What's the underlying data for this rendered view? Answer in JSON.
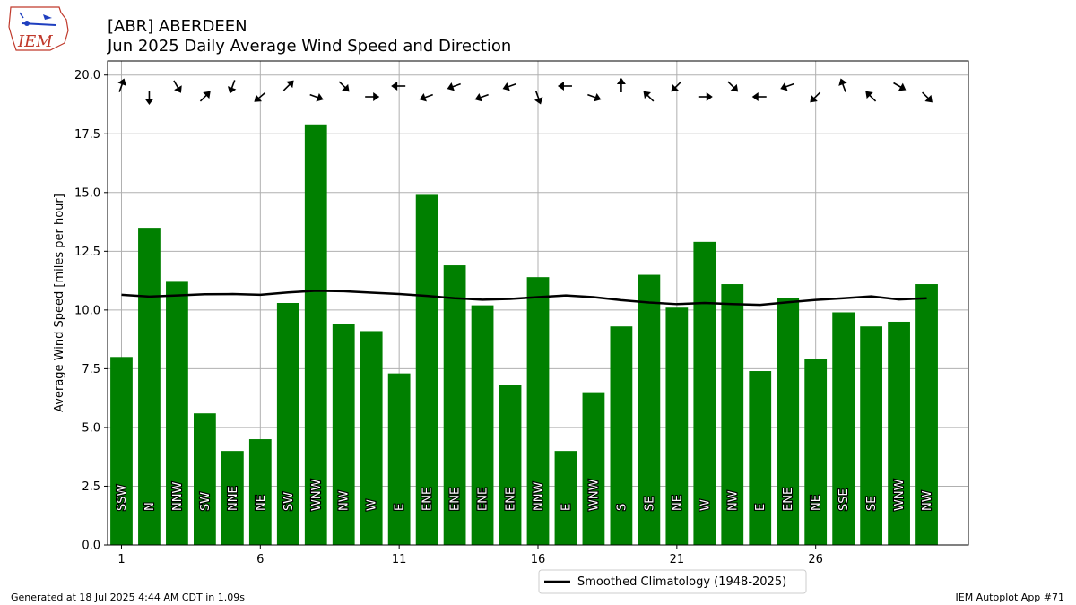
{
  "header": {
    "logo_text": "IEM",
    "title_line1": "[ABR] ABERDEEN",
    "title_line2": "Jun 2025 Daily Average Wind Speed and Direction"
  },
  "footer": {
    "generated": "Generated at 18 Jul 2025 4:44 AM CDT in 1.09s",
    "app": "IEM Autoplot App #71"
  },
  "chart_data": {
    "type": "bar",
    "title": "Jun 2025 Daily Average Wind Speed and Direction",
    "xlabel": "",
    "ylabel": "Average Wind Speed [miles per hour]",
    "xlim": [
      0.5,
      31.5
    ],
    "ylim": [
      0,
      20.6
    ],
    "x_ticks": [
      1,
      6,
      11,
      16,
      21,
      26
    ],
    "y_ticks": [
      0.0,
      2.5,
      5.0,
      7.5,
      10.0,
      12.5,
      15.0,
      17.5,
      20.0
    ],
    "grid": true,
    "bar_color": "#008000",
    "days": [
      1,
      2,
      3,
      4,
      5,
      6,
      7,
      8,
      9,
      10,
      11,
      12,
      13,
      14,
      15,
      16,
      17,
      18,
      19,
      20,
      21,
      22,
      23,
      24,
      25,
      26,
      27,
      28,
      29,
      30
    ],
    "values": [
      8.0,
      13.5,
      11.2,
      5.6,
      4.0,
      4.5,
      10.3,
      17.9,
      9.4,
      9.1,
      7.3,
      14.9,
      11.9,
      10.2,
      6.8,
      11.4,
      4.0,
      6.5,
      9.3,
      11.5,
      10.1,
      12.9,
      11.1,
      7.4,
      10.5,
      7.9,
      9.9,
      9.3,
      9.5,
      11.1
    ],
    "directions": [
      "SSW",
      "N",
      "NNW",
      "SW",
      "NNE",
      "NE",
      "SW",
      "WNW",
      "NW",
      "W",
      "E",
      "ENE",
      "ENE",
      "ENE",
      "ENE",
      "NNW",
      "E",
      "WNW",
      "S",
      "SE",
      "NE",
      "W",
      "NW",
      "E",
      "ENE",
      "NE",
      "SSE",
      "SE",
      "WNW",
      "NW"
    ],
    "direction_degrees": [
      200,
      0,
      330,
      225,
      20,
      50,
      225,
      290,
      315,
      270,
      90,
      70,
      70,
      70,
      70,
      340,
      90,
      290,
      180,
      135,
      45,
      270,
      315,
      90,
      70,
      45,
      160,
      135,
      300,
      315
    ],
    "climatology": {
      "name": "Smoothed Climatology (1948-2025)",
      "color": "#000000",
      "values": [
        10.65,
        10.57,
        10.62,
        10.67,
        10.68,
        10.65,
        10.75,
        10.82,
        10.8,
        10.74,
        10.68,
        10.6,
        10.5,
        10.44,
        10.47,
        10.55,
        10.62,
        10.55,
        10.42,
        10.32,
        10.25,
        10.3,
        10.25,
        10.22,
        10.33,
        10.43,
        10.5,
        10.58,
        10.45,
        10.5
      ]
    },
    "legend_position": "bottom-right"
  }
}
